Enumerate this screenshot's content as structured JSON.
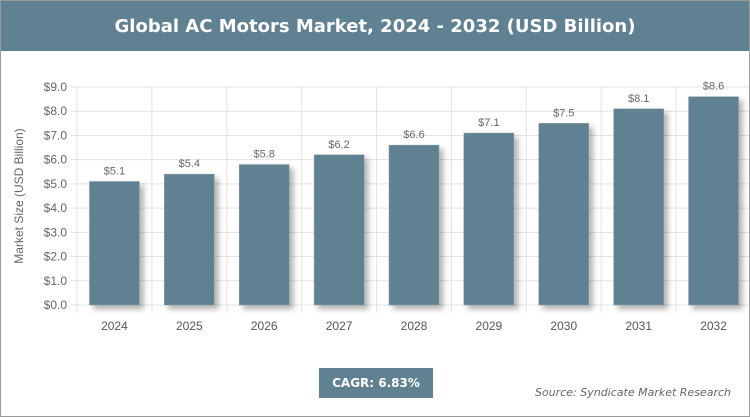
{
  "title": "Global AC Motors Market, 2024 - 2032 (USD Billion)",
  "cagr_label": "CAGR: 6.83%",
  "source": "Source: Syndicate Market Research",
  "colors": {
    "bar": "#5f8191",
    "header": "#5f8191"
  },
  "chart_data": {
    "type": "bar",
    "title": "Global AC Motors Market, 2024 - 2032 (USD Billion)",
    "ylabel": "Market Size (USD Billion)",
    "xlabel": "",
    "categories": [
      "2024",
      "2025",
      "2026",
      "2027",
      "2028",
      "2029",
      "2030",
      "2031",
      "2032"
    ],
    "values": [
      5.1,
      5.4,
      5.8,
      6.2,
      6.6,
      7.1,
      7.5,
      8.1,
      8.6
    ],
    "data_labels": [
      "$5.1",
      "$5.4",
      "$5.8",
      "$6.2",
      "$6.6",
      "$7.1",
      "$7.5",
      "$8.1",
      "$8.6"
    ],
    "yticks": [
      "$0.0",
      "$1.0",
      "$2.0",
      "$3.0",
      "$4.0",
      "$5.0",
      "$6.0",
      "$7.0",
      "$8.0",
      "$9.0"
    ],
    "ylim": [
      0,
      9
    ],
    "grid": true
  }
}
